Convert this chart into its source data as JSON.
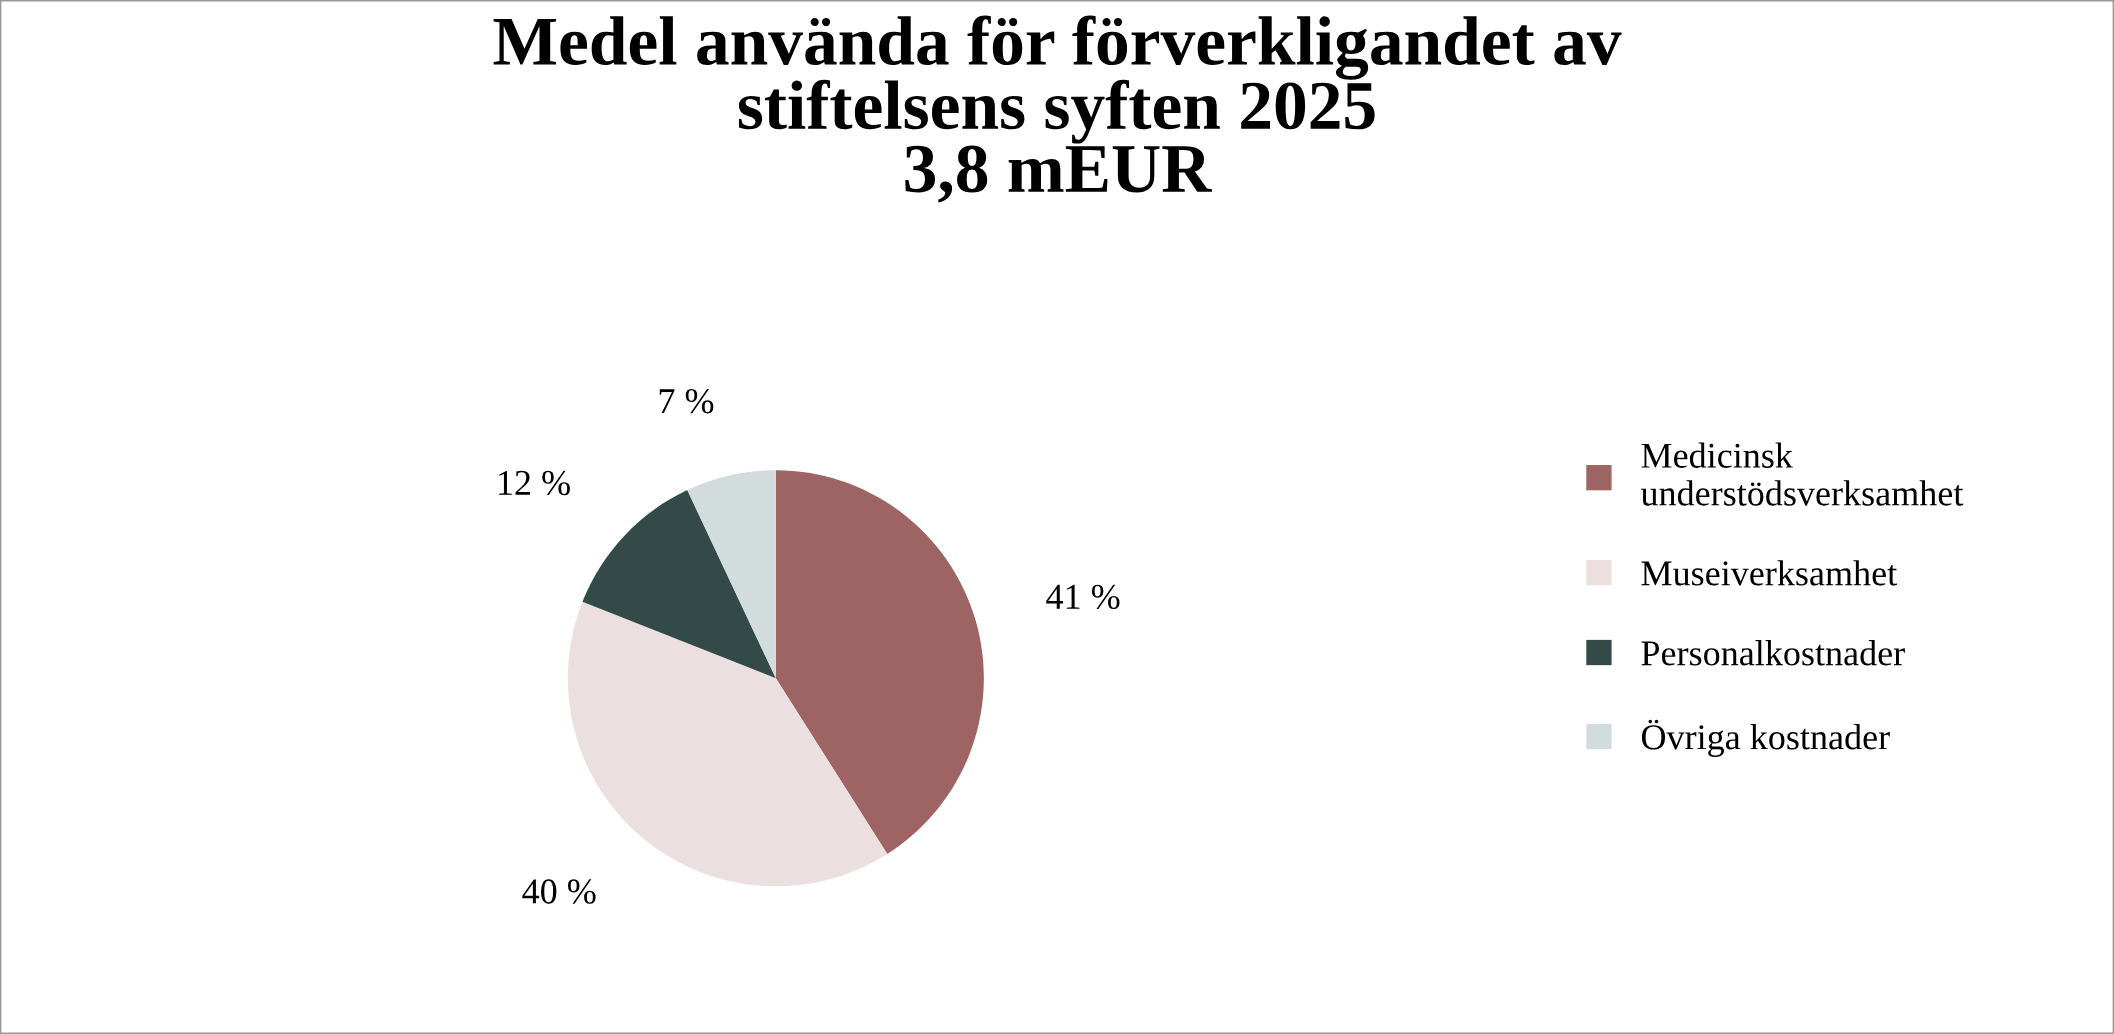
{
  "chart_data": {
    "type": "pie",
    "title": "Medel använda för förverkligandet av\nstiftelsens syften 2025\n3,8 mEUR",
    "categories": [
      "Medicinsk\nunderstödsverksamhet",
      "Museiverksamhet",
      "Personalkostnader",
      "Övriga kostnader"
    ],
    "values": [
      41,
      40,
      12,
      7
    ],
    "value_labels": [
      "41 %",
      "40 %",
      "12 %",
      "7 %"
    ],
    "colors": [
      "#9e6464",
      "#ecdfe0",
      "#344a48",
      "#d2dcdc"
    ],
    "legend": "right"
  }
}
